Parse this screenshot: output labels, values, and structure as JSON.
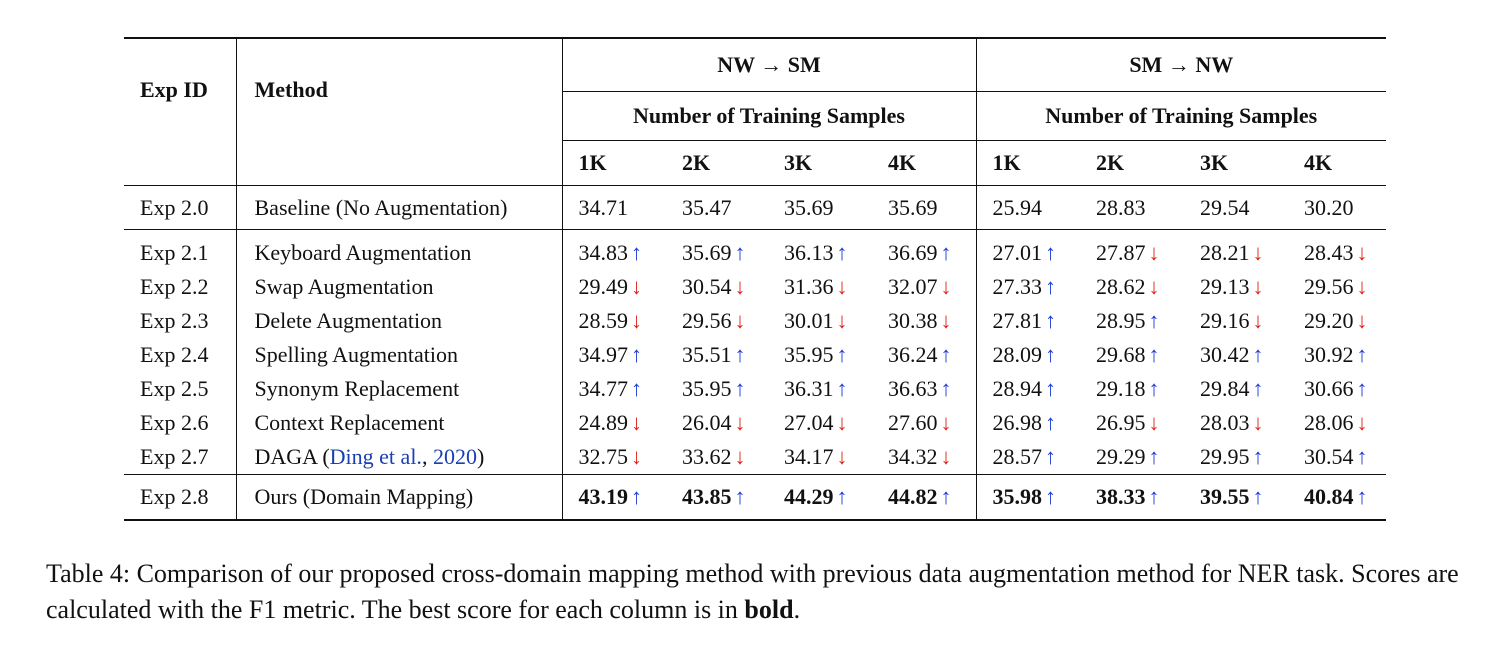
{
  "headers": {
    "exp_id": "Exp ID",
    "method": "Method",
    "group1": "NW → SM",
    "group2": "SM → NW",
    "sub1": "Number of Training Samples",
    "sub2": "Number of Training Samples",
    "cols": [
      "1K",
      "2K",
      "3K",
      "4K",
      "1K",
      "2K",
      "3K",
      "4K"
    ]
  },
  "baseline": {
    "id": "Exp 2.0",
    "method": "Baseline (No Augmentation)",
    "values": [
      "34.71",
      "35.47",
      "35.69",
      "35.69",
      "25.94",
      "28.83",
      "29.54",
      "30.20"
    ]
  },
  "rows": [
    {
      "id": "Exp 2.1",
      "method": "Keyboard Augmentation",
      "values": [
        "34.83",
        "35.69",
        "36.13",
        "36.69",
        "27.01",
        "27.87",
        "28.21",
        "28.43"
      ],
      "dirs": [
        "up",
        "up",
        "up",
        "up",
        "up",
        "down",
        "down",
        "down"
      ]
    },
    {
      "id": "Exp 2.2",
      "method": "Swap Augmentation",
      "values": [
        "29.49",
        "30.54",
        "31.36",
        "32.07",
        "27.33",
        "28.62",
        "29.13",
        "29.56"
      ],
      "dirs": [
        "down",
        "down",
        "down",
        "down",
        "up",
        "down",
        "down",
        "down"
      ]
    },
    {
      "id": "Exp 2.3",
      "method": "Delete Augmentation",
      "values": [
        "28.59",
        "29.56",
        "30.01",
        "30.38",
        "27.81",
        "28.95",
        "29.16",
        "29.20"
      ],
      "dirs": [
        "down",
        "down",
        "down",
        "down",
        "up",
        "up",
        "down",
        "down"
      ]
    },
    {
      "id": "Exp 2.4",
      "method": "Spelling Augmentation",
      "values": [
        "34.97",
        "35.51",
        "35.95",
        "36.24",
        "28.09",
        "29.68",
        "30.42",
        "30.92"
      ],
      "dirs": [
        "up",
        "up",
        "up",
        "up",
        "up",
        "up",
        "up",
        "up"
      ]
    },
    {
      "id": "Exp 2.5",
      "method": "Synonym Replacement",
      "values": [
        "34.77",
        "35.95",
        "36.31",
        "36.63",
        "28.94",
        "29.18",
        "29.84",
        "30.66"
      ],
      "dirs": [
        "up",
        "up",
        "up",
        "up",
        "up",
        "up",
        "up",
        "up"
      ]
    },
    {
      "id": "Exp 2.6",
      "method": "Context Replacement",
      "values": [
        "24.89",
        "26.04",
        "27.04",
        "27.60",
        "26.98",
        "26.95",
        "28.03",
        "28.06"
      ],
      "dirs": [
        "down",
        "down",
        "down",
        "down",
        "up",
        "down",
        "down",
        "down"
      ]
    },
    {
      "id": "Exp 2.7",
      "method_prefix": "DAGA (",
      "method_cite": "Ding et al.",
      "method_sep": ", ",
      "method_year": "2020",
      "method_suffix": ")",
      "values": [
        "32.75",
        "33.62",
        "34.17",
        "34.32",
        "28.57",
        "29.29",
        "29.95",
        "30.54"
      ],
      "dirs": [
        "down",
        "down",
        "down",
        "down",
        "up",
        "up",
        "up",
        "up"
      ]
    }
  ],
  "ours": {
    "id": "Exp 2.8",
    "method": "Ours (Domain Mapping)",
    "values": [
      "43.19",
      "43.85",
      "44.29",
      "44.82",
      "35.98",
      "38.33",
      "39.55",
      "40.84"
    ],
    "dirs": [
      "up",
      "up",
      "up",
      "up",
      "up",
      "up",
      "up",
      "up"
    ]
  },
  "arrows": {
    "up": "↑",
    "down": "↓"
  },
  "colors": {
    "up": "#1f3fd6",
    "down": "#e0241b",
    "citation": "#1a3fb5"
  },
  "caption": {
    "text": "Table 4: Comparison of our proposed cross-domain mapping method with previous data augmentation method for NER task. Scores are calculated with the F1 metric. The best score for each column is in ",
    "bold": "bold",
    "end": "."
  }
}
